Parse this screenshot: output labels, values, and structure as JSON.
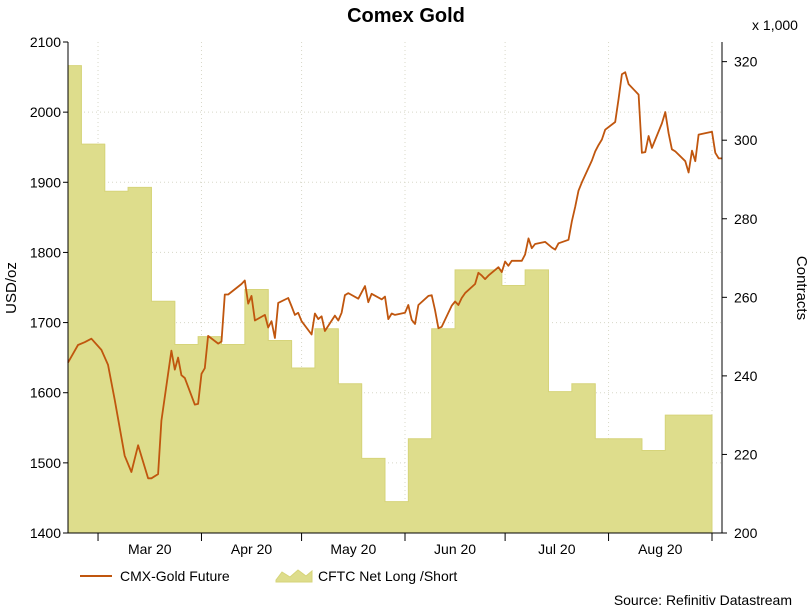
{
  "chart_data": {
    "type": "line",
    "title": "Comex Gold",
    "source": "Source: Refinitiv Datastream",
    "x_ticks": [
      "Mar 20",
      "Apr 20",
      "May 20",
      "Jun 20",
      "Jul 20",
      "Aug 20"
    ],
    "x_range": [
      "2020-02-21",
      "2020-09-04"
    ],
    "left_axis": {
      "label": "USD/oz",
      "range": [
        1400,
        2100
      ],
      "ticks": [
        1400,
        1500,
        1600,
        1700,
        1800,
        1900,
        2000,
        2100
      ]
    },
    "right_axis": {
      "label": "Contracts",
      "multiplier_label": "x 1,000",
      "range": [
        200,
        325
      ],
      "ticks": [
        200,
        220,
        240,
        260,
        280,
        300,
        320
      ]
    },
    "grid": true,
    "legend_position": "bottom-left",
    "colors": {
      "line": "#c0560e",
      "area_fill": "#dedd8c",
      "area_edge": "#d6d47a",
      "grid": "#d8d8c8"
    },
    "series": [
      {
        "name": "CMX-Gold Future",
        "axis": "left",
        "type": "line",
        "points": [
          [
            "2020-02-21",
            1643
          ],
          [
            "2020-02-24",
            1668
          ],
          [
            "2020-02-26",
            1672
          ],
          [
            "2020-02-28",
            1677
          ],
          [
            "2020-03-02",
            1661
          ],
          [
            "2020-03-04",
            1640
          ],
          [
            "2020-03-06",
            1590
          ],
          [
            "2020-03-09",
            1510
          ],
          [
            "2020-03-11",
            1487
          ],
          [
            "2020-03-13",
            1525
          ],
          [
            "2020-03-16",
            1478
          ],
          [
            "2020-03-17",
            1478
          ],
          [
            "2020-03-19",
            1484
          ],
          [
            "2020-03-20",
            1560
          ],
          [
            "2020-03-23",
            1660
          ],
          [
            "2020-03-24",
            1633
          ],
          [
            "2020-03-25",
            1650
          ],
          [
            "2020-03-26",
            1625
          ],
          [
            "2020-03-27",
            1621
          ],
          [
            "2020-03-30",
            1583
          ],
          [
            "2020-03-31",
            1584
          ],
          [
            "2020-04-01",
            1627
          ],
          [
            "2020-04-02",
            1635
          ],
          [
            "2020-04-03",
            1681
          ],
          [
            "2020-04-06",
            1670
          ],
          [
            "2020-04-07",
            1673
          ],
          [
            "2020-04-08",
            1740
          ],
          [
            "2020-04-09",
            1740
          ],
          [
            "2020-04-13",
            1755
          ],
          [
            "2020-04-14",
            1760
          ],
          [
            "2020-04-15",
            1727
          ],
          [
            "2020-04-16",
            1738
          ],
          [
            "2020-04-17",
            1703
          ],
          [
            "2020-04-20",
            1711
          ],
          [
            "2020-04-21",
            1693
          ],
          [
            "2020-04-22",
            1702
          ],
          [
            "2020-04-23",
            1678
          ],
          [
            "2020-04-24",
            1728
          ],
          [
            "2020-04-27",
            1735
          ],
          [
            "2020-04-28",
            1723
          ],
          [
            "2020-04-29",
            1711
          ],
          [
            "2020-04-30",
            1714
          ],
          [
            "2020-05-01",
            1702
          ],
          [
            "2020-05-04",
            1683
          ],
          [
            "2020-05-05",
            1713
          ],
          [
            "2020-05-06",
            1705
          ],
          [
            "2020-05-07",
            1709
          ],
          [
            "2020-05-08",
            1688
          ],
          [
            "2020-05-11",
            1710
          ],
          [
            "2020-05-12",
            1703
          ],
          [
            "2020-05-13",
            1714
          ],
          [
            "2020-05-14",
            1739
          ],
          [
            "2020-05-15",
            1742
          ],
          [
            "2020-05-18",
            1734
          ],
          [
            "2020-05-19",
            1743
          ],
          [
            "2020-05-20",
            1752
          ],
          [
            "2020-05-21",
            1729
          ],
          [
            "2020-05-22",
            1741
          ],
          [
            "2020-05-25",
            1733
          ],
          [
            "2020-05-26",
            1737
          ],
          [
            "2020-05-27",
            1705
          ],
          [
            "2020-05-28",
            1713
          ],
          [
            "2020-05-29",
            1711
          ],
          [
            "2020-06-01",
            1714
          ],
          [
            "2020-06-02",
            1725
          ],
          [
            "2020-06-03",
            1704
          ],
          [
            "2020-06-04",
            1698
          ],
          [
            "2020-06-05",
            1725
          ],
          [
            "2020-06-08",
            1738
          ],
          [
            "2020-06-09",
            1739
          ],
          [
            "2020-06-10",
            1718
          ],
          [
            "2020-06-11",
            1692
          ],
          [
            "2020-06-12",
            1694
          ],
          [
            "2020-06-15",
            1724
          ],
          [
            "2020-06-16",
            1730
          ],
          [
            "2020-06-17",
            1725
          ],
          [
            "2020-06-18",
            1735
          ],
          [
            "2020-06-19",
            1742
          ],
          [
            "2020-06-22",
            1755
          ],
          [
            "2020-06-23",
            1771
          ],
          [
            "2020-06-24",
            1767
          ],
          [
            "2020-06-25",
            1762
          ],
          [
            "2020-06-26",
            1767
          ],
          [
            "2020-06-29",
            1779
          ],
          [
            "2020-06-30",
            1772
          ],
          [
            "2020-07-01",
            1787
          ],
          [
            "2020-07-02",
            1781
          ],
          [
            "2020-07-03",
            1788
          ],
          [
            "2020-07-06",
            1788
          ],
          [
            "2020-07-07",
            1797
          ],
          [
            "2020-07-08",
            1820
          ],
          [
            "2020-07-09",
            1806
          ],
          [
            "2020-07-10",
            1812
          ],
          [
            "2020-07-13",
            1815
          ],
          [
            "2020-07-14",
            1811
          ],
          [
            "2020-07-15",
            1807
          ],
          [
            "2020-07-16",
            1804
          ],
          [
            "2020-07-17",
            1813
          ],
          [
            "2020-07-20",
            1818
          ],
          [
            "2020-07-21",
            1844
          ],
          [
            "2020-07-22",
            1865
          ],
          [
            "2020-07-23",
            1888
          ],
          [
            "2020-07-24",
            1900
          ],
          [
            "2020-07-27",
            1931
          ],
          [
            "2020-07-28",
            1944
          ],
          [
            "2020-07-29",
            1953
          ],
          [
            "2020-07-30",
            1961
          ],
          [
            "2020-07-31",
            1975
          ],
          [
            "2020-08-03",
            1986
          ],
          [
            "2020-08-04",
            2019
          ],
          [
            "2020-08-05",
            2054
          ],
          [
            "2020-08-06",
            2057
          ],
          [
            "2020-08-07",
            2040
          ],
          [
            "2020-08-10",
            2025
          ],
          [
            "2020-08-11",
            1942
          ],
          [
            "2020-08-12",
            1943
          ],
          [
            "2020-08-13",
            1966
          ],
          [
            "2020-08-14",
            1949
          ],
          [
            "2020-08-17",
            1984
          ],
          [
            "2020-08-18",
            2000
          ],
          [
            "2020-08-19",
            1970
          ],
          [
            "2020-08-20",
            1947
          ],
          [
            "2020-08-21",
            1944
          ],
          [
            "2020-08-24",
            1930
          ],
          [
            "2020-08-25",
            1914
          ],
          [
            "2020-08-26",
            1945
          ],
          [
            "2020-08-27",
            1930
          ],
          [
            "2020-08-28",
            1968
          ],
          [
            "2020-09-01",
            1972
          ],
          [
            "2020-09-02",
            1942
          ],
          [
            "2020-09-03",
            1934
          ],
          [
            "2020-09-04",
            1934
          ]
        ]
      },
      {
        "name": "CFTC Net Long /Short",
        "axis": "right",
        "type": "area-step",
        "points": [
          [
            "2020-02-21",
            319
          ],
          [
            "2020-02-25",
            299
          ],
          [
            "2020-03-03",
            287
          ],
          [
            "2020-03-10",
            288
          ],
          [
            "2020-03-17",
            259
          ],
          [
            "2020-03-24",
            248
          ],
          [
            "2020-03-31",
            250
          ],
          [
            "2020-04-07",
            248
          ],
          [
            "2020-04-14",
            262
          ],
          [
            "2020-04-21",
            249
          ],
          [
            "2020-04-28",
            242
          ],
          [
            "2020-05-05",
            252
          ],
          [
            "2020-05-12",
            238
          ],
          [
            "2020-05-19",
            219
          ],
          [
            "2020-05-26",
            208
          ],
          [
            "2020-06-02",
            224
          ],
          [
            "2020-06-09",
            252
          ],
          [
            "2020-06-16",
            267
          ],
          [
            "2020-06-23",
            267
          ],
          [
            "2020-06-30",
            263
          ],
          [
            "2020-07-07",
            267
          ],
          [
            "2020-07-14",
            236
          ],
          [
            "2020-07-21",
            238
          ],
          [
            "2020-07-28",
            224
          ],
          [
            "2020-08-04",
            224
          ],
          [
            "2020-08-11",
            221
          ],
          [
            "2020-08-18",
            230
          ],
          [
            "2020-08-25",
            230
          ]
        ]
      }
    ]
  }
}
